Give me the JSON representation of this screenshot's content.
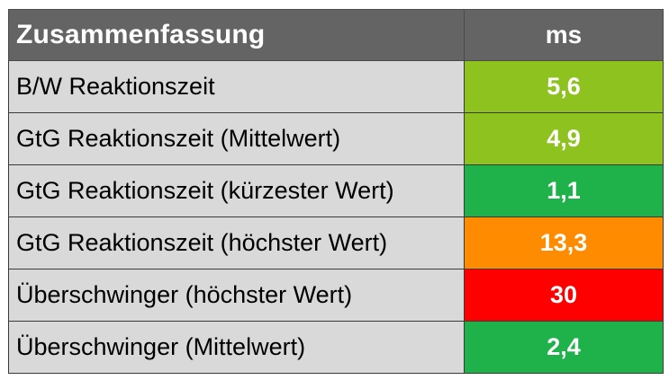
{
  "table": {
    "header": {
      "label": "Zusammenfassung",
      "unit": "ms"
    },
    "rows": [
      {
        "label": "B/W Reaktionszeit",
        "value": "5,6",
        "color": "#8dc21f"
      },
      {
        "label": "GtG Reaktionszeit (Mittelwert)",
        "value": "4,9",
        "color": "#8dc21f"
      },
      {
        "label": "GtG Reaktionszeit (kürzester Wert)",
        "value": "1,1",
        "color": "#1fb24a"
      },
      {
        "label": "GtG Reaktionszeit (höchster Wert)",
        "value": "13,3",
        "color": "#ff8c00"
      },
      {
        "label": "Überschwinger (höchster Wert)",
        "value": "30",
        "color": "#ff0000"
      },
      {
        "label": "Überschwinger (Mittelwert)",
        "value": "2,4",
        "color": "#1fb24a"
      }
    ]
  }
}
